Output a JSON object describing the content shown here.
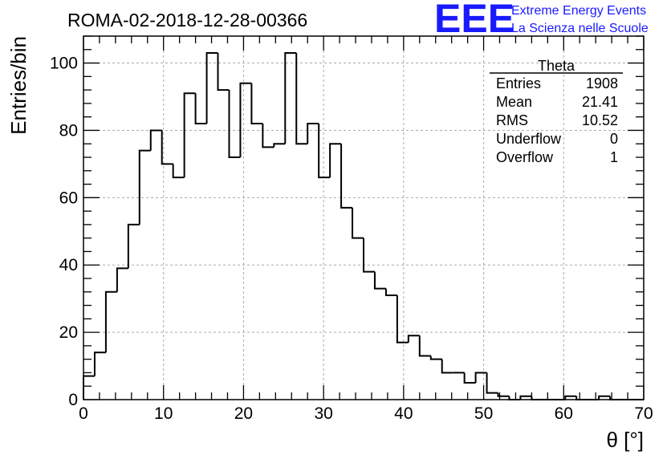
{
  "chart_data": {
    "type": "bar",
    "title": "ROMA-02-2018-12-28-00366",
    "xlabel": "θ [°]",
    "ylabel": "Entries/bin",
    "xlim": [
      0,
      70
    ],
    "ylim": [
      0,
      108
    ],
    "x_ticks": [
      "0",
      "10",
      "20",
      "30",
      "40",
      "50",
      "60",
      "70"
    ],
    "y_ticks": [
      "0",
      "20",
      "40",
      "60",
      "80",
      "100"
    ],
    "grid": true,
    "bin_width": 1.4,
    "values": [
      7,
      14,
      32,
      39,
      52,
      74,
      80,
      70,
      66,
      91,
      82,
      103,
      92,
      72,
      94,
      82,
      75,
      76,
      103,
      76,
      82,
      66,
      76,
      57,
      48,
      38,
      33,
      31,
      17,
      19,
      13,
      12,
      8,
      8,
      5,
      8,
      2,
      1,
      0,
      1,
      0,
      0,
      0,
      1,
      0,
      0,
      1,
      0,
      0,
      0
    ]
  },
  "stats_box": {
    "name": "Theta",
    "rows": [
      {
        "label": "Entries",
        "value": "1908"
      },
      {
        "label": "Mean",
        "value": "21.41"
      },
      {
        "label": "RMS",
        "value": "10.52"
      },
      {
        "label": "Underflow",
        "value": "0"
      },
      {
        "label": "Overflow",
        "value": "1"
      }
    ]
  },
  "logo": {
    "mark": "EEE",
    "line1": "Extreme Energy Events",
    "line2": "La Scienza nelle Scuole",
    "color": "#1a1aff"
  }
}
